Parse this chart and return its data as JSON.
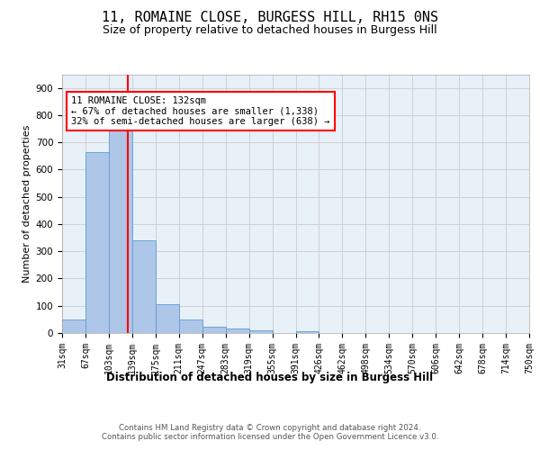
{
  "title1": "11, ROMAINE CLOSE, BURGESS HILL, RH15 0NS",
  "title2": "Size of property relative to detached houses in Burgess Hill",
  "xlabel": "Distribution of detached houses by size in Burgess Hill",
  "ylabel": "Number of detached properties",
  "bin_labels": [
    "31sqm",
    "67sqm",
    "103sqm",
    "139sqm",
    "175sqm",
    "211sqm",
    "247sqm",
    "283sqm",
    "319sqm",
    "355sqm",
    "391sqm",
    "426sqm",
    "462sqm",
    "498sqm",
    "534sqm",
    "570sqm",
    "606sqm",
    "642sqm",
    "678sqm",
    "714sqm",
    "750sqm"
  ],
  "bar_values": [
    50,
    665,
    750,
    340,
    107,
    50,
    24,
    15,
    9,
    0,
    7,
    0,
    0,
    0,
    0,
    0,
    0,
    0,
    0,
    0
  ],
  "bar_color": "#aec6e8",
  "bar_edge_color": "#5a9fd4",
  "property_line_color": "red",
  "annotation_text": "11 ROMAINE CLOSE: 132sqm\n← 67% of detached houses are smaller (1,338)\n32% of semi-detached houses are larger (638) →",
  "annotation_box_color": "white",
  "annotation_box_edgecolor": "red",
  "ylim": [
    0,
    950
  ],
  "yticks": [
    0,
    100,
    200,
    300,
    400,
    500,
    600,
    700,
    800,
    900
  ],
  "grid_color": "#cccccc",
  "bg_color": "#e8f0f8",
  "footer_text": "Contains HM Land Registry data © Crown copyright and database right 2024.\nContains public sector information licensed under the Open Government Licence v3.0.",
  "title1_fontsize": 11,
  "title2_fontsize": 9,
  "xlabel_fontsize": 8.5,
  "ylabel_fontsize": 8,
  "tick_fontsize": 7,
  "annotation_fontsize": 7.5
}
